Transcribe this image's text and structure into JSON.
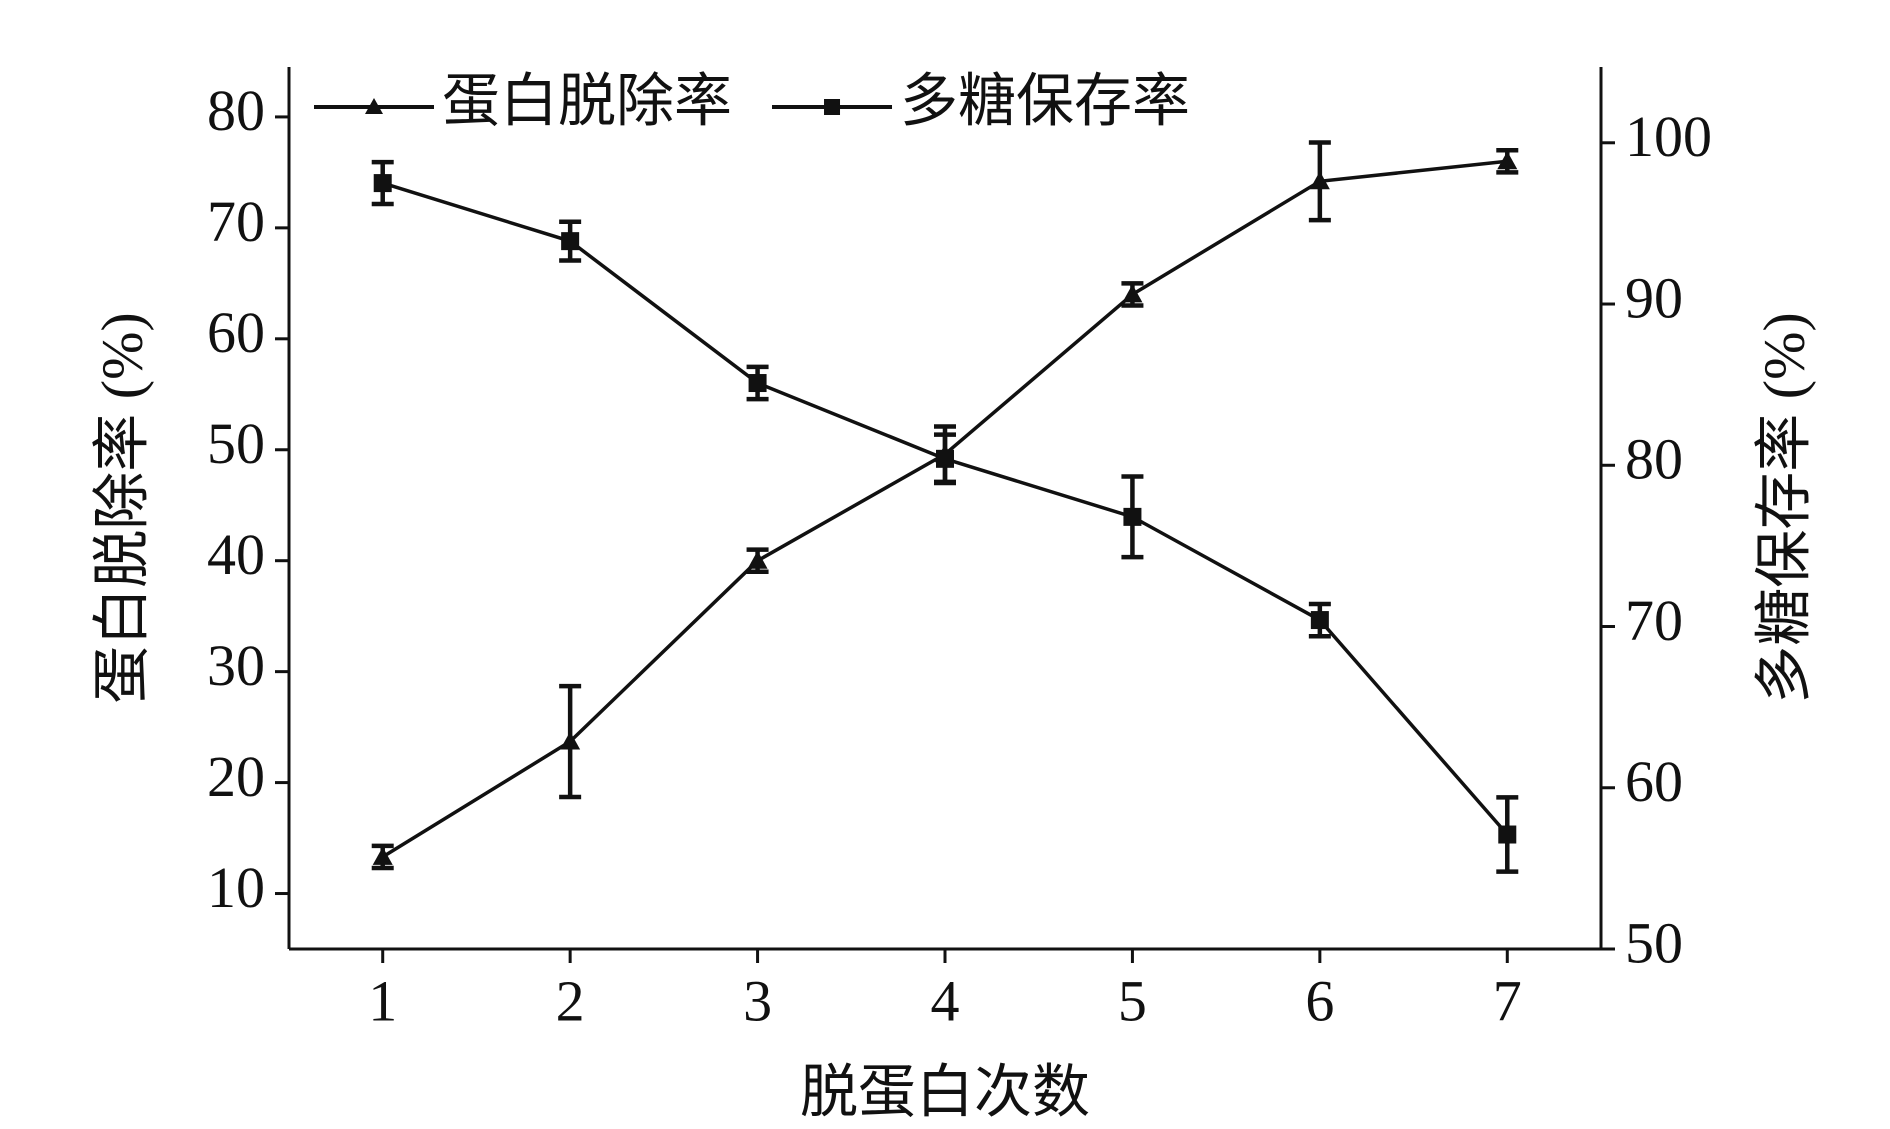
{
  "chart_data": {
    "type": "line",
    "x_label": "脱蛋白次数",
    "y_label": "蛋白脱除率 (%)",
    "y2_label": "多糖保存率 (%)",
    "x": [
      1,
      2,
      3,
      4,
      5,
      6,
      7
    ],
    "xlim": [
      0.5,
      7.5
    ],
    "xticks": [
      1,
      2,
      3,
      4,
      5,
      6,
      7
    ],
    "ylim": [
      5,
      84.5
    ],
    "yticks": [
      10,
      20,
      30,
      40,
      50,
      60,
      70,
      80
    ],
    "y2lim": [
      50,
      104.7
    ],
    "y2ticks": [
      50,
      60,
      70,
      80,
      90,
      100
    ],
    "legend": "upper left",
    "series": [
      {
        "name": "蛋白脱除率",
        "color": "#111111",
        "marker": "triangle",
        "values": [
          13.3,
          23.7,
          40,
          49.6,
          64,
          74.2,
          76
        ],
        "errors": [
          1,
          5,
          1,
          2.5,
          1,
          3.5,
          1
        ]
      },
      {
        "name": "多糖保存率",
        "color": "#111111",
        "marker": "square",
        "axis": "y2",
        "values": [
          97.5,
          93.9,
          85.1,
          80.4,
          76.8,
          70.4,
          57.1
        ],
        "errors": [
          1.3,
          1.2,
          1,
          1.5,
          2.5,
          1,
          2.3
        ]
      }
    ]
  }
}
